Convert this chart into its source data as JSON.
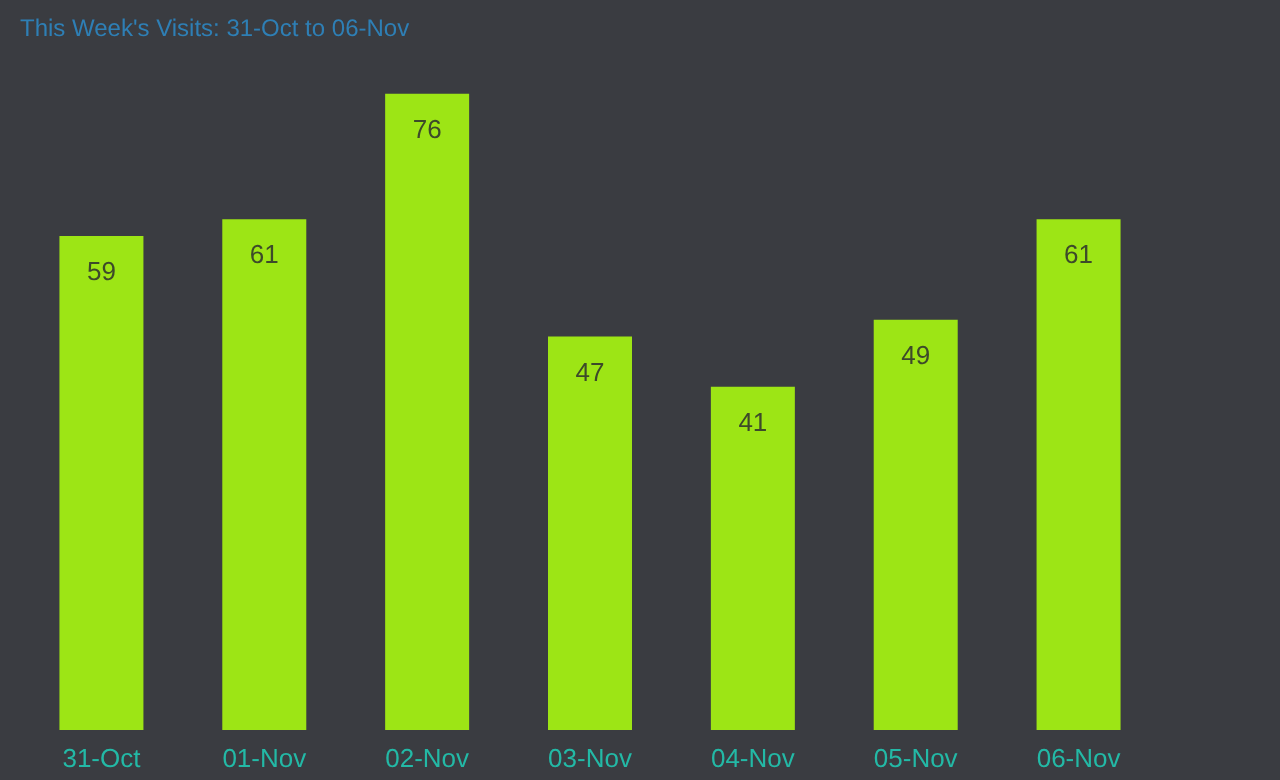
{
  "chart_data": {
    "type": "bar",
    "subtitle": "This Week's Visits: 31-Oct to 06-Nov",
    "categories": [
      "31-Oct",
      "01-Nov",
      "02-Nov",
      "03-Nov",
      "04-Nov",
      "05-Nov",
      "06-Nov"
    ],
    "values": [
      59,
      61,
      76,
      47,
      41,
      49,
      61
    ],
    "color": "#9de515",
    "data_labels": true,
    "grid": false
  }
}
